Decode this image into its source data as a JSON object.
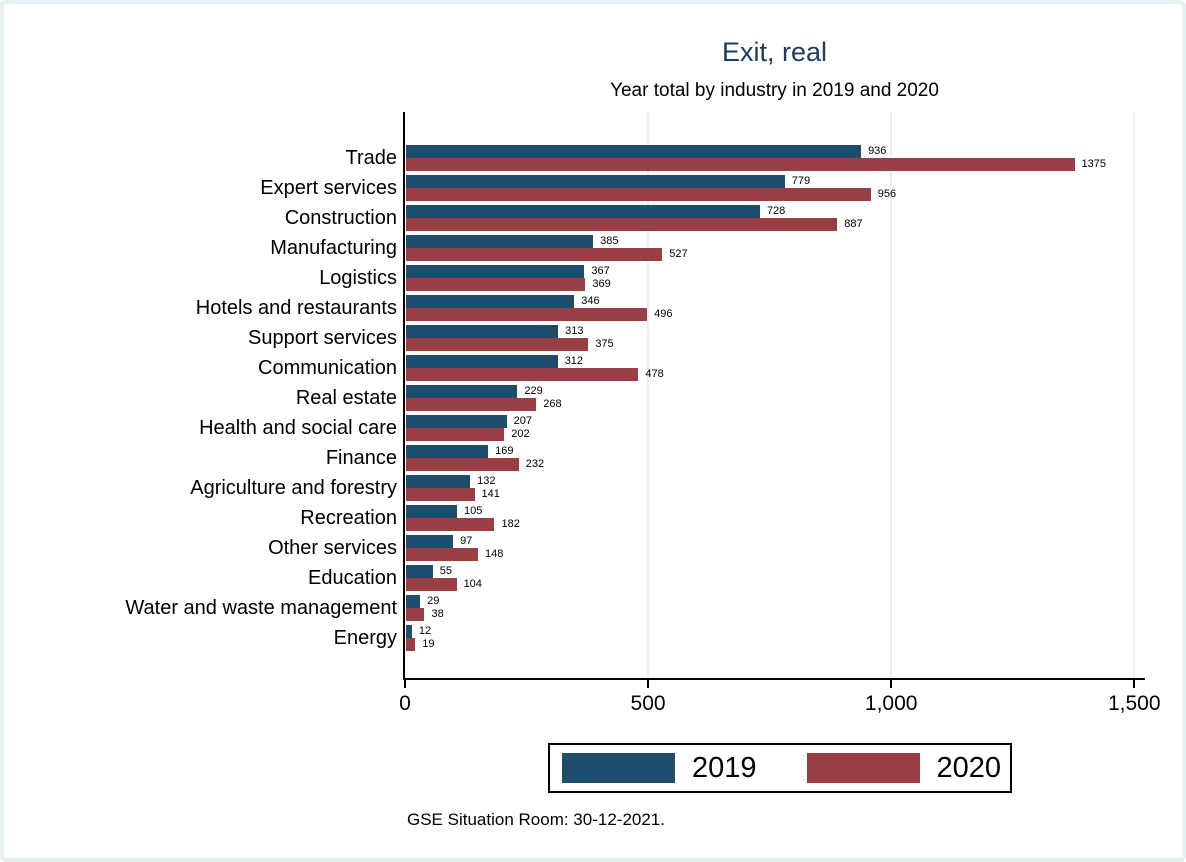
{
  "title": "Exit, real",
  "subtitle": "Year total by industry in 2019 and 2020",
  "footnote": "GSE Situation Room: 30-12-2021.",
  "colors": {
    "title": "#1e3a66",
    "bar_2019": "#1f4d6e",
    "bar_2020": "#993e44",
    "gridline": "#e3f0f2",
    "axis": "#000000",
    "frame_border": "#e4f0f1",
    "background": "#ffffff"
  },
  "legend": {
    "position": "bottom",
    "items": [
      {
        "label": "2019",
        "color": "#1f4d6e"
      },
      {
        "label": "2020",
        "color": "#993e44"
      }
    ]
  },
  "chart_data": {
    "type": "bar",
    "orientation": "horizontal",
    "title": "Exit, real",
    "subtitle": "Year total by industry in 2019 and 2020",
    "categories": [
      "Trade",
      "Expert services",
      "Construction",
      "Manufacturing",
      "Logistics",
      "Hotels and restaurants",
      "Support services",
      "Communication",
      "Real estate",
      "Health and social care",
      "Finance",
      "Agriculture and forestry",
      "Recreation",
      "Other services",
      "Education",
      "Water and waste management",
      "Energy"
    ],
    "series": [
      {
        "name": "2019",
        "color": "#1f4d6e",
        "values": [
          936,
          779,
          728,
          385,
          367,
          346,
          313,
          312,
          229,
          207,
          169,
          132,
          105,
          97,
          55,
          29,
          12
        ]
      },
      {
        "name": "2020",
        "color": "#993e44",
        "values": [
          1375,
          956,
          887,
          527,
          369,
          496,
          375,
          478,
          268,
          202,
          232,
          141,
          182,
          148,
          104,
          38,
          19
        ]
      }
    ],
    "xlabel": "",
    "ylabel": "",
    "xlim": [
      0,
      1520
    ],
    "xticks": [
      {
        "value": 0,
        "label": "0"
      },
      {
        "value": 500,
        "label": "500"
      },
      {
        "value": 1000,
        "label": "1,000"
      },
      {
        "value": 1500,
        "label": "1,500"
      }
    ],
    "grid": "vertical gridlines at x ticks",
    "bar_value_labels": true,
    "legend_position": "bottom"
  }
}
